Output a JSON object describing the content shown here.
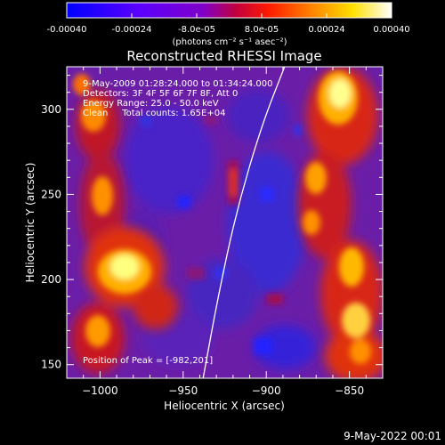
{
  "colorbar": {
    "tick_labels": [
      "-0.00040",
      "-0.00024",
      "-8.0e-05",
      "8.0e-05",
      "0.00024",
      "0.00040"
    ],
    "tick_values": [
      -0.0004,
      -0.00024,
      -8e-05,
      8e-05,
      0.00024,
      0.0004
    ],
    "range": [
      -0.0004,
      0.0004
    ],
    "units": "(photons cm⁻² s⁻¹ asec⁻²)",
    "colormap": [
      "#0000ff",
      "#7a00ff",
      "#ff0000",
      "#ff8800",
      "#ffff00",
      "#ffffff"
    ]
  },
  "image": {
    "title": "Reconstructed RHESSI Image",
    "info_lines": [
      "9-May-2009 01:28:24.000 to 01:34:24.000",
      "Detectors: 3F 4F 5F 6F 7F 8F, Att 0",
      "Energy Range: 25.0 - 50.0 keV",
      "Clean     Total counts: 1.65E+04"
    ],
    "peak_label": "Position of Peak = [-982,201]",
    "x_axis": {
      "label": "Heliocentric X (arcsec)",
      "ticks": [
        -1000,
        -950,
        -900,
        -850
      ],
      "tick_labels": [
        "−1000",
        "−950",
        "−900",
        "−850"
      ],
      "range": [
        -1020,
        -830
      ]
    },
    "y_axis": {
      "label": "Heliocentric Y (arcsec)",
      "ticks": [
        150,
        200,
        250,
        300
      ],
      "tick_labels": [
        "150",
        "200",
        "250",
        "300"
      ],
      "range": [
        142,
        325
      ]
    },
    "limb_points": [
      [
        -938,
        142
      ],
      [
        -929,
        190
      ],
      [
        -918,
        240
      ],
      [
        -903,
        290
      ],
      [
        -889,
        325
      ]
    ]
  },
  "footer_timestamp": "9-May-2022 00:01"
}
